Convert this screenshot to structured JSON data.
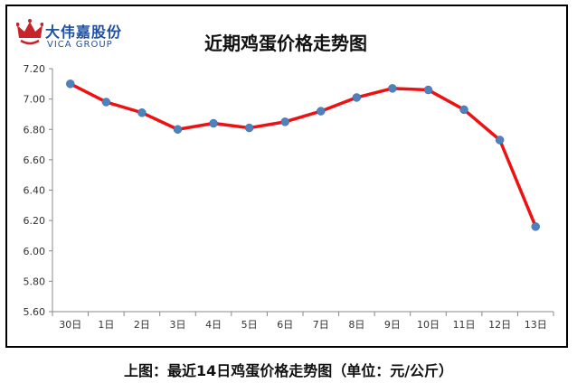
{
  "brand": {
    "name_cn": "大伟嘉股份",
    "name_en": "VICA GROUP",
    "accent": "#1e4fa0",
    "crown_color": "#c8222a"
  },
  "caption": "上图：最近14日鸡蛋价格走势图（单位：元/公斤）",
  "chart_data": {
    "type": "line",
    "title": "近期鸡蛋价格走势图",
    "xlabel": "",
    "ylabel": "",
    "categories": [
      "30日",
      "1日",
      "2日",
      "3日",
      "4日",
      "5日",
      "6日",
      "7日",
      "8日",
      "9日",
      "10日",
      "11日",
      "12日",
      "13日"
    ],
    "values": [
      7.1,
      6.98,
      6.91,
      6.8,
      6.84,
      6.81,
      6.85,
      6.92,
      7.01,
      7.07,
      7.06,
      6.93,
      6.73,
      6.16
    ],
    "ylim": [
      5.6,
      7.2
    ],
    "yticks": [
      "5.60",
      "5.80",
      "6.00",
      "6.20",
      "6.40",
      "6.60",
      "6.80",
      "7.00",
      "7.20"
    ],
    "grid": false,
    "line_color": "#ee1111",
    "marker_color": "#4f81bd",
    "axis_color": "#888888"
  }
}
